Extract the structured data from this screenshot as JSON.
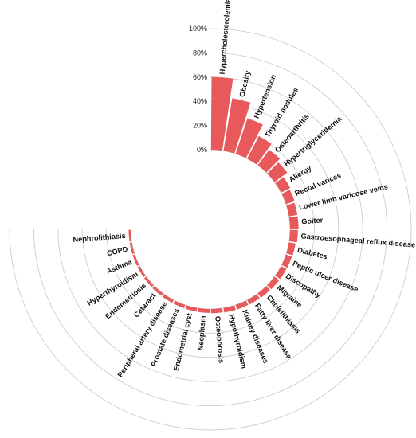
{
  "chart_data": {
    "type": "bar",
    "layout": "circular",
    "bar_color": "#e8595b",
    "background": "#ffffff",
    "categories": [
      "Hypercholesterolemia",
      "Obesity",
      "Hypertension",
      "Thyroid nodules",
      "Osteoarthritis",
      "Hypertriglyceridemia",
      "Allergy",
      "Rectal varices",
      "Lower limb varicose veins",
      "Goiter",
      "Gastroesophageal reflux disease",
      "Diabetes",
      "Peptic ulcer disease",
      "Discopathy",
      "Migraine",
      "Cholelithiasis",
      "Fatty liver disease",
      "Kidney diseases",
      "Hypothyroidism",
      "Osteoporosis",
      "Neoplasm",
      "Endometrial cyst",
      "Prostate diseases",
      "Peripheral artery disease",
      "Cataract",
      "Endometriosis",
      "Hyperthyroidism",
      "Asthma",
      "COPD",
      "Nephrolithiasis"
    ],
    "values": [
      60,
      44,
      31,
      21,
      16,
      13,
      8.5,
      7.5,
      7,
      7,
      6.5,
      5.5,
      5.2,
      5,
      4.8,
      4.5,
      4.2,
      4,
      3.8,
      3.5,
      3.2,
      3,
      2.8,
      2.6,
      2.4,
      2.2,
      2,
      1.9,
      1.8,
      1.7
    ],
    "ylim": [
      0,
      100
    ],
    "yticks": [
      "0%",
      "20%",
      "40%",
      "60%",
      "80%",
      "100%"
    ]
  }
}
